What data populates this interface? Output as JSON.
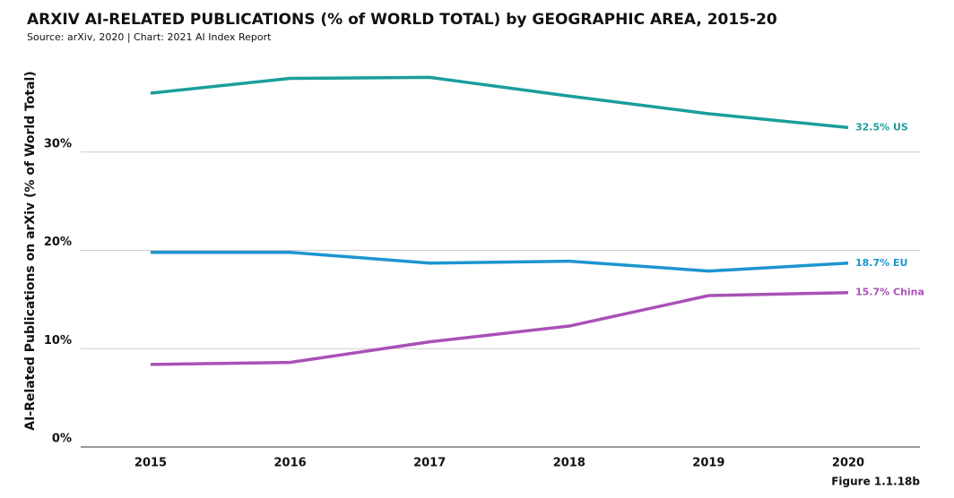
{
  "chart_data": {
    "type": "line",
    "title": "ARXIV AI-RELATED PUBLICATIONS (% of WORLD TOTAL) by GEOGRAPHIC AREA, 2015-20",
    "subtitle": "Source: arXiv, 2020 | Chart: 2021 AI Index Report",
    "figure_label": "Figure 1.1.18b",
    "y_label": "AI-Related Publications on arXiv (% of World Total)",
    "categories": [
      "2015",
      "2016",
      "2017",
      "2018",
      "2019",
      "2020"
    ],
    "series": [
      {
        "name": "US",
        "color": "#1a9e9c",
        "values": [
          36.0,
          37.5,
          37.6,
          35.7,
          33.9,
          32.5
        ],
        "value_labels": [
          null,
          null,
          null,
          null,
          null,
          "32.5% US"
        ]
      },
      {
        "name": "EU",
        "color": "#1c95cf",
        "values": [
          19.8,
          19.8,
          18.7,
          18.9,
          17.9,
          18.7
        ],
        "value_labels": [
          null,
          null,
          null,
          null,
          null,
          "18.7% EU"
        ]
      },
      {
        "name": "China",
        "color": "#a851b6",
        "values": [
          8.4,
          8.6,
          10.7,
          12.3,
          15.4,
          15.7
        ],
        "value_labels": [
          null,
          null,
          null,
          null,
          null,
          "15.7% China"
        ]
      }
    ],
    "ylim": [
      0,
      38
    ],
    "yticks": [
      {
        "value": 0,
        "label": "0%"
      },
      {
        "value": 10,
        "label": "10%"
      },
      {
        "value": 20,
        "label": "20%"
      },
      {
        "value": 30,
        "label": "30%"
      }
    ],
    "grid": true
  }
}
